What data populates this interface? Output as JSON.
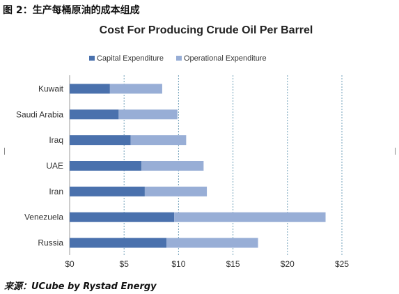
{
  "figure": {
    "caption": "图 2：生产每桶原油的成本组成",
    "source": "来源：UCube by Rystad Energy"
  },
  "chart_data": {
    "type": "bar",
    "orientation": "horizontal",
    "stacked": true,
    "title": "Cost For Producing Crude Oil Per Barrel",
    "xlabel": "",
    "ylabel": "",
    "categories": [
      "Kuwait",
      "Saudi Arabia",
      "Iraq",
      "UAE",
      "Iran",
      "Venezuela",
      "Russia"
    ],
    "series": [
      {
        "name": "Capital Expenditure",
        "color": "#4a71ad",
        "values": [
          3.7,
          4.5,
          5.6,
          6.6,
          6.9,
          9.6,
          8.9
        ]
      },
      {
        "name": "Operational Expenditure",
        "color": "#98aed6",
        "values": [
          4.8,
          5.4,
          5.1,
          5.7,
          5.7,
          13.9,
          8.4
        ]
      }
    ],
    "xlim": [
      0,
      25
    ],
    "xticks": [
      0,
      5,
      10,
      15,
      20,
      25
    ],
    "xtick_labels": [
      "$0",
      "$5",
      "$10",
      "$15",
      "$20",
      "$25"
    ],
    "grid": "vertical dashed",
    "legend_position": "top"
  }
}
